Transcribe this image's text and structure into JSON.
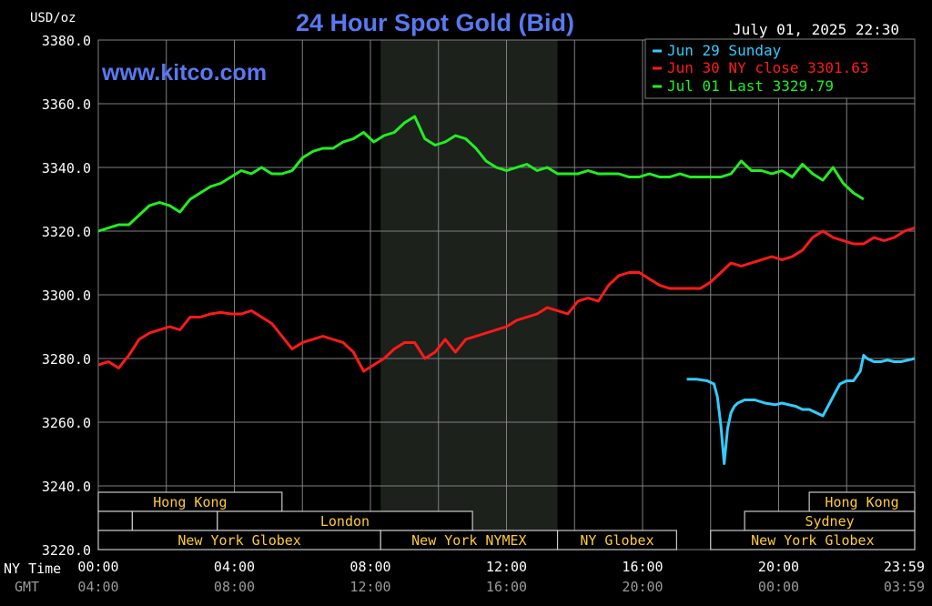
{
  "header": {
    "units": "USD/oz",
    "title": "24 Hour Spot Gold (Bid)",
    "timestamp": "July 01, 2025 22:30",
    "watermark": "www.kitco.com"
  },
  "colors": {
    "background": "#000000",
    "grid": "#808080",
    "title": "#5a78f0",
    "session_fill": "#1c211c",
    "market_label": "#ffcc33",
    "axis_text": "#ffffff",
    "gmt_text": "#9a9a9a",
    "jun29": "#33ccff",
    "jun30": "#ff1a1a",
    "jul01": "#22ee22"
  },
  "chart_data": {
    "type": "line",
    "title": "24 Hour Spot Gold (Bid)",
    "ylabel": "USD/oz",
    "ylim": [
      3220,
      3380
    ],
    "yticks": [
      3220,
      3240,
      3260,
      3280,
      3300,
      3320,
      3340,
      3360,
      3380
    ],
    "ytick_labels": [
      "3220.0",
      "3240.0",
      "3260.0",
      "3280.0",
      "3300.0",
      "3320.0",
      "3340.0",
      "3360.0",
      "3380.0"
    ],
    "xlim": [
      0,
      24
    ],
    "xticks": [
      0,
      4,
      8,
      12,
      16,
      20,
      24
    ],
    "x_row_label_ny": "NY Time",
    "x_row_label_gmt": "GMT",
    "xtick_labels_ny": [
      "00:00",
      "04:00",
      "08:00",
      "12:00",
      "16:00",
      "20:00",
      "23:59"
    ],
    "xtick_labels_gmt": [
      "04:00",
      "08:00",
      "12:00",
      "16:00",
      "20:00",
      "00:00",
      "03:59"
    ],
    "highlight_hours": [
      8.3,
      13.5
    ],
    "legend_position": "top-right",
    "series": [
      {
        "name": "Jun 29 Sunday",
        "color_key": "jun29",
        "x": [
          17.3,
          17.6,
          17.9,
          18.1,
          18.2,
          18.3,
          18.4,
          18.5,
          18.6,
          18.7,
          18.8,
          19.0,
          19.3,
          19.6,
          19.9,
          20.1,
          20.3,
          20.5,
          20.7,
          20.9,
          21.1,
          21.3,
          21.5,
          21.7,
          21.8,
          21.9,
          22.0,
          22.2,
          22.4,
          22.5,
          22.6,
          22.8,
          23.0,
          23.2,
          23.4,
          23.6,
          23.8,
          24.0
        ],
        "y": [
          3273.5,
          3273.5,
          3273,
          3272,
          3268,
          3259,
          3247,
          3258,
          3263,
          3265,
          3266,
          3267,
          3267,
          3266,
          3265.5,
          3266,
          3265.5,
          3265,
          3264,
          3264,
          3263,
          3262,
          3266,
          3270,
          3272,
          3272.5,
          3273,
          3273,
          3276,
          3281,
          3280,
          3279,
          3279,
          3279.5,
          3279,
          3279,
          3279.5,
          3280
        ]
      },
      {
        "name": "Jun 30 NY close 3301.63",
        "color_key": "jun30",
        "x": [
          0,
          0.3,
          0.6,
          0.9,
          1.2,
          1.5,
          1.8,
          2.1,
          2.4,
          2.7,
          3.0,
          3.3,
          3.6,
          3.9,
          4.2,
          4.5,
          4.8,
          5.1,
          5.4,
          5.7,
          6.0,
          6.3,
          6.6,
          6.9,
          7.2,
          7.5,
          7.8,
          8.1,
          8.4,
          8.7,
          9.0,
          9.3,
          9.6,
          9.9,
          10.2,
          10.5,
          10.8,
          11.1,
          11.4,
          11.7,
          12.0,
          12.3,
          12.6,
          12.9,
          13.2,
          13.5,
          13.8,
          14.1,
          14.4,
          14.7,
          15.0,
          15.3,
          15.6,
          15.9,
          16.2,
          16.5,
          16.8,
          17.1,
          17.4,
          17.7,
          18.0,
          18.3,
          18.6,
          18.9,
          19.2,
          19.5,
          19.8,
          20.1,
          20.4,
          20.7,
          21.0,
          21.3,
          21.6,
          21.9,
          22.2,
          22.5,
          22.8,
          23.1,
          23.4,
          23.7,
          24.0
        ],
        "y": [
          3278,
          3279,
          3277,
          3281,
          3286,
          3288,
          3289,
          3290,
          3289,
          3293,
          3293,
          3294,
          3294.5,
          3294,
          3294,
          3295,
          3293,
          3291,
          3287,
          3283,
          3285,
          3286,
          3287,
          3286,
          3285,
          3282,
          3276,
          3278,
          3280,
          3283,
          3285,
          3285,
          3280,
          3282,
          3286,
          3282,
          3286,
          3287,
          3288,
          3289,
          3290,
          3292,
          3293,
          3294,
          3296,
          3295,
          3294,
          3298,
          3299,
          3298,
          3303,
          3306,
          3307,
          3307,
          3305,
          3303,
          3302,
          3302,
          3302,
          3302,
          3304,
          3307,
          3310,
          3309,
          3310,
          3311,
          3312,
          3311,
          3312,
          3314,
          3318,
          3320,
          3318,
          3317,
          3316,
          3316,
          3318,
          3317,
          3318,
          3320,
          3321
        ]
      },
      {
        "name": "Jul 01 Last 3329.79",
        "color_key": "jul01",
        "x": [
          0,
          0.3,
          0.6,
          0.9,
          1.2,
          1.5,
          1.8,
          2.1,
          2.4,
          2.7,
          3.0,
          3.3,
          3.6,
          3.9,
          4.2,
          4.5,
          4.8,
          5.1,
          5.4,
          5.7,
          6.0,
          6.3,
          6.6,
          6.9,
          7.2,
          7.5,
          7.8,
          8.1,
          8.4,
          8.7,
          9.0,
          9.3,
          9.6,
          9.9,
          10.2,
          10.5,
          10.8,
          11.1,
          11.4,
          11.7,
          12.0,
          12.3,
          12.6,
          12.9,
          13.2,
          13.5,
          13.8,
          14.1,
          14.4,
          14.7,
          15.0,
          15.3,
          15.6,
          15.9,
          16.2,
          16.5,
          16.8,
          17.1,
          17.4,
          17.7,
          18.0,
          18.3,
          18.6,
          18.9,
          19.2,
          19.5,
          19.8,
          20.1,
          20.4,
          20.7,
          21.0,
          21.3,
          21.6,
          21.9,
          22.2,
          22.5
        ],
        "y": [
          3320,
          3321,
          3322,
          3322,
          3325,
          3328,
          3329,
          3328,
          3326,
          3330,
          3332,
          3334,
          3335,
          3337,
          3339,
          3338,
          3340,
          3338,
          3338,
          3339,
          3343,
          3345,
          3346,
          3346,
          3348,
          3349,
          3351,
          3348,
          3350,
          3351,
          3354,
          3356,
          3349,
          3347,
          3348,
          3350,
          3349,
          3346,
          3342,
          3340,
          3339,
          3340,
          3341,
          3339,
          3340,
          3338,
          3338,
          3338,
          3339,
          3338,
          3338,
          3338,
          3337,
          3337,
          3338,
          3337,
          3337,
          3338,
          3337,
          3337,
          3337,
          3337,
          3338,
          3342,
          3339,
          3339,
          3338,
          3339,
          3337,
          3341,
          3338,
          3336,
          3340,
          3335,
          3332,
          3330
        ]
      }
    ]
  },
  "sessions": {
    "row1": [
      {
        "label": "Hong Kong",
        "start": 0,
        "end": 5.4,
        "show_label": true
      },
      {
        "label": "Hong Kong",
        "start": 20.9,
        "end": 24,
        "show_label": true
      }
    ],
    "row2": [
      {
        "label": "",
        "start": 0,
        "end": 1.0,
        "show_label": false
      },
      {
        "label": "",
        "start": 1.0,
        "end": 3.5,
        "show_label": false
      },
      {
        "label": "London",
        "start": 3.5,
        "end": 11.0,
        "show_label": true
      },
      {
        "label": "Sydney",
        "start": 19.0,
        "end": 24,
        "show_label": true
      }
    ],
    "row3": [
      {
        "label": "New York Globex",
        "start": 0,
        "end": 8.3,
        "show_label": true
      },
      {
        "label": "New York NYMEX",
        "start": 8.3,
        "end": 13.5,
        "show_label": true
      },
      {
        "label": "NY Globex",
        "start": 13.5,
        "end": 17.0,
        "show_label": true
      },
      {
        "label": "New York Globex",
        "start": 18.0,
        "end": 24,
        "show_label": true
      }
    ]
  }
}
